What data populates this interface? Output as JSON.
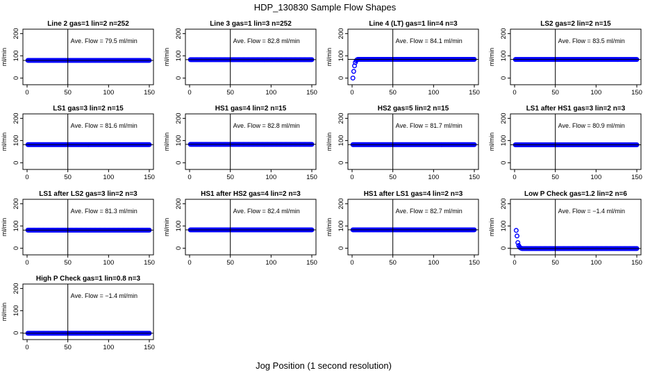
{
  "figure": {
    "title": "HDP_130830  Sample Flow Shapes",
    "xlabel": "Jog Position (1 second resolution)"
  },
  "chart_data": [
    {
      "type": "scatter",
      "title": "Line 2 gas=1 lin=2 n=252",
      "annotation": "Ave. Flow =  79.5  ml/min",
      "ylabel": "ml/min",
      "xlim": [
        0,
        150
      ],
      "ylim": [
        -30,
        220
      ],
      "xticks": [
        "0",
        "50",
        "100",
        "150"
      ],
      "yticks": [
        "0",
        "100",
        "200"
      ],
      "vline": 50,
      "hline": 79.5,
      "shape": {
        "kind": "flat",
        "start": 1,
        "end": 150,
        "value": 79.5
      },
      "marker_color": "#0000ff"
    },
    {
      "type": "scatter",
      "title": "Line 3 gas=1 lin=3 n=252",
      "annotation": "Ave. Flow =  82.8  ml/min",
      "ylabel": "ml/min",
      "xlim": [
        0,
        150
      ],
      "ylim": [
        -30,
        220
      ],
      "xticks": [
        "0",
        "50",
        "100",
        "150"
      ],
      "yticks": [
        "0",
        "100",
        "200"
      ],
      "vline": 50,
      "hline": 82.8,
      "shape": {
        "kind": "flat",
        "start": 1,
        "end": 150,
        "value": 82.8
      },
      "marker_color": "#0000ff"
    },
    {
      "type": "scatter",
      "title": "Line 4 (LT) gas=1 lin=4 n=3",
      "annotation": "Ave. Flow =  84.1  ml/min",
      "ylabel": "ml/min",
      "xlim": [
        0,
        150
      ],
      "ylim": [
        -30,
        220
      ],
      "xticks": [
        "0",
        "50",
        "100",
        "150"
      ],
      "yticks": [
        "0",
        "100",
        "200"
      ],
      "vline": 50,
      "hline": 84.1,
      "shape": {
        "kind": "rampup",
        "start": 1,
        "end": 150,
        "value": 84.1,
        "initial": [
          [
            1,
            0
          ],
          [
            2,
            30
          ],
          [
            3,
            55
          ],
          [
            4,
            70
          ],
          [
            5,
            78
          ],
          [
            6,
            82
          ]
        ]
      },
      "marker_color": "#0000ff"
    },
    {
      "type": "scatter",
      "title": "LS2 gas=2 lin=2 n=15",
      "annotation": "Ave. Flow =  83.5  ml/min",
      "ylabel": "ml/min",
      "xlim": [
        0,
        150
      ],
      "ylim": [
        -30,
        220
      ],
      "xticks": [
        "0",
        "50",
        "100",
        "150"
      ],
      "yticks": [
        "0",
        "100",
        "200"
      ],
      "vline": 50,
      "hline": 83.5,
      "shape": {
        "kind": "flat",
        "start": 1,
        "end": 150,
        "value": 83.5
      },
      "marker_color": "#0000ff"
    },
    {
      "type": "scatter",
      "title": "LS1 gas=3 lin=2 n=15",
      "annotation": "Ave. Flow =  81.6  ml/min",
      "ylabel": "ml/min",
      "xlim": [
        0,
        150
      ],
      "ylim": [
        -30,
        220
      ],
      "xticks": [
        "0",
        "50",
        "100",
        "150"
      ],
      "yticks": [
        "0",
        "100",
        "200"
      ],
      "vline": 50,
      "hline": 81.6,
      "shape": {
        "kind": "flat",
        "start": 1,
        "end": 150,
        "value": 81.6
      },
      "marker_color": "#0000ff"
    },
    {
      "type": "scatter",
      "title": "HS1 gas=4 lin=2 n=15",
      "annotation": "Ave. Flow =  82.8  ml/min",
      "ylabel": "ml/min",
      "xlim": [
        0,
        150
      ],
      "ylim": [
        -30,
        220
      ],
      "xticks": [
        "0",
        "50",
        "100",
        "150"
      ],
      "yticks": [
        "0",
        "100",
        "200"
      ],
      "vline": 50,
      "hline": 82.8,
      "shape": {
        "kind": "flat",
        "start": 1,
        "end": 150,
        "value": 82.8
      },
      "marker_color": "#0000ff"
    },
    {
      "type": "scatter",
      "title": "HS2 gas=5 lin=2 n=15",
      "annotation": "Ave. Flow =  81.7  ml/min",
      "ylabel": "ml/min",
      "xlim": [
        0,
        150
      ],
      "ylim": [
        -30,
        220
      ],
      "xticks": [
        "0",
        "50",
        "100",
        "150"
      ],
      "yticks": [
        "0",
        "100",
        "200"
      ],
      "vline": 50,
      "hline": 81.7,
      "shape": {
        "kind": "flat",
        "start": 1,
        "end": 150,
        "value": 81.7
      },
      "marker_color": "#0000ff"
    },
    {
      "type": "scatter",
      "title": "LS1 after HS1 gas=3 lin=2 n=3",
      "annotation": "Ave. Flow =  80.9  ml/min",
      "ylabel": "ml/min",
      "xlim": [
        0,
        150
      ],
      "ylim": [
        -30,
        220
      ],
      "xticks": [
        "0",
        "50",
        "100",
        "150"
      ],
      "yticks": [
        "0",
        "100",
        "200"
      ],
      "vline": 50,
      "hline": 80.9,
      "shape": {
        "kind": "flat",
        "start": 1,
        "end": 150,
        "value": 80.9
      },
      "marker_color": "#0000ff"
    },
    {
      "type": "scatter",
      "title": "LS1 after LS2 gas=3 lin=2 n=3",
      "annotation": "Ave. Flow =  81.3  ml/min",
      "ylabel": "ml/min",
      "xlim": [
        0,
        150
      ],
      "ylim": [
        -30,
        220
      ],
      "xticks": [
        "0",
        "50",
        "100",
        "150"
      ],
      "yticks": [
        "0",
        "100",
        "200"
      ],
      "vline": 50,
      "hline": 81.3,
      "shape": {
        "kind": "flat",
        "start": 1,
        "end": 150,
        "value": 81.3
      },
      "marker_color": "#0000ff"
    },
    {
      "type": "scatter",
      "title": "HS1 after HS2 gas=4 lin=2 n=3",
      "annotation": "Ave. Flow =  82.4  ml/min",
      "ylabel": "ml/min",
      "xlim": [
        0,
        150
      ],
      "ylim": [
        -30,
        220
      ],
      "xticks": [
        "0",
        "50",
        "100",
        "150"
      ],
      "yticks": [
        "0",
        "100",
        "200"
      ],
      "vline": 50,
      "hline": 82.4,
      "shape": {
        "kind": "flat",
        "start": 1,
        "end": 150,
        "value": 82.4
      },
      "marker_color": "#0000ff"
    },
    {
      "type": "scatter",
      "title": "HS1 after LS1 gas=4 lin=2 n=3",
      "annotation": "Ave. Flow =  82.7  ml/min",
      "ylabel": "ml/min",
      "xlim": [
        0,
        150
      ],
      "ylim": [
        -30,
        220
      ],
      "xticks": [
        "0",
        "50",
        "100",
        "150"
      ],
      "yticks": [
        "0",
        "100",
        "200"
      ],
      "vline": 50,
      "hline": 82.7,
      "shape": {
        "kind": "flat",
        "start": 1,
        "end": 150,
        "value": 82.7
      },
      "marker_color": "#0000ff"
    },
    {
      "type": "scatter",
      "title": "Low P Check gas=1.2 lin=2 n=6",
      "annotation": "Ave. Flow =  −1.4  ml/min",
      "ylabel": "ml/min",
      "xlim": [
        0,
        150
      ],
      "ylim": [
        -30,
        220
      ],
      "xticks": [
        "0",
        "50",
        "100",
        "150"
      ],
      "yticks": [
        "0",
        "100",
        "200"
      ],
      "vline": 50,
      "hline": -1.4,
      "shape": {
        "kind": "decay",
        "start": 1,
        "end": 150,
        "value": -1.4,
        "initial": [
          [
            2,
            80
          ],
          [
            3,
            55
          ],
          [
            4,
            25
          ],
          [
            5,
            12
          ],
          [
            6,
            5
          ],
          [
            7,
            2
          ],
          [
            8,
            0
          ]
        ]
      },
      "marker_color": "#0000ff"
    },
    {
      "type": "scatter",
      "title": "High P Check gas=1 lin=0.8 n=3",
      "annotation": "Ave. Flow =  −1.4  ml/min",
      "ylabel": "ml/min",
      "xlim": [
        0,
        150
      ],
      "ylim": [
        -30,
        220
      ],
      "xticks": [
        "0",
        "50",
        "100",
        "150"
      ],
      "yticks": [
        "0",
        "100",
        "200"
      ],
      "vline": 50,
      "hline": -1.4,
      "shape": {
        "kind": "flat",
        "start": 1,
        "end": 150,
        "value": -1.4
      },
      "marker_color": "#0000ff"
    }
  ]
}
